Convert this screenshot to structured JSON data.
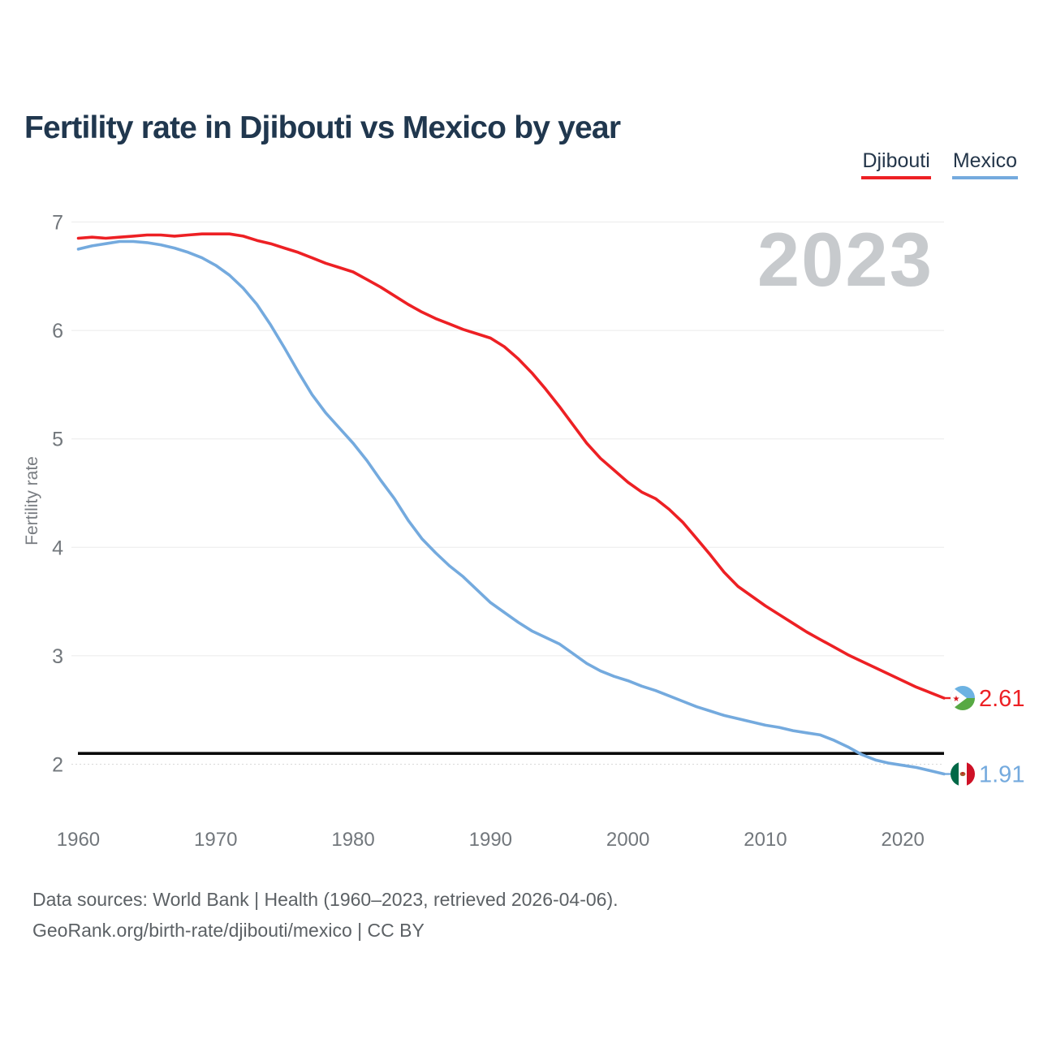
{
  "header": {
    "title": "Fertility rate in Djibouti vs Mexico by year"
  },
  "watermark": "2023",
  "footer": {
    "line1": "Data sources: World Bank | Health (1960–2023, retrieved 2026-04-06).",
    "line2": "GeoRank.org/birth-rate/djibouti/mexico | CC BY"
  },
  "chart_data": {
    "type": "line",
    "title": "Fertility rate in Djibouti vs Mexico by year",
    "xlabel": "",
    "ylabel": "Fertility rate",
    "xlim": [
      1959.5,
      2023
    ],
    "ylim": [
      2,
      7
    ],
    "yticks": [
      2,
      3,
      4,
      5,
      6,
      7
    ],
    "xticks": [
      1960,
      1970,
      1980,
      1990,
      2000,
      2010,
      2020
    ],
    "grid": true,
    "legend_position": "top-right",
    "baseline": {
      "value": 2.1,
      "color": "#0a0a0a"
    },
    "colors": {
      "tick_label": "#72777c",
      "grid": "#ebebeb",
      "watermark": "#c7cacd",
      "axis_label": "#797d82"
    },
    "years": [
      1960,
      1961,
      1962,
      1963,
      1964,
      1965,
      1966,
      1967,
      1968,
      1969,
      1970,
      1971,
      1972,
      1973,
      1974,
      1975,
      1976,
      1977,
      1978,
      1979,
      1980,
      1981,
      1982,
      1983,
      1984,
      1985,
      1986,
      1987,
      1988,
      1989,
      1990,
      1991,
      1992,
      1993,
      1994,
      1995,
      1996,
      1997,
      1998,
      1999,
      2000,
      2001,
      2002,
      2003,
      2004,
      2005,
      2006,
      2007,
      2008,
      2009,
      2010,
      2011,
      2012,
      2013,
      2014,
      2015,
      2016,
      2017,
      2018,
      2019,
      2020,
      2021,
      2022,
      2023
    ],
    "series": [
      {
        "name": "Djibouti",
        "color": "#ed2024",
        "end_label": "2.61",
        "flag": "djibouti",
        "values": [
          6.85,
          6.86,
          6.85,
          6.86,
          6.87,
          6.88,
          6.88,
          6.87,
          6.88,
          6.89,
          6.89,
          6.89,
          6.87,
          6.83,
          6.8,
          6.76,
          6.72,
          6.67,
          6.62,
          6.58,
          6.54,
          6.47,
          6.4,
          6.32,
          6.24,
          6.17,
          6.11,
          6.06,
          6.01,
          5.97,
          5.93,
          5.85,
          5.74,
          5.61,
          5.46,
          5.3,
          5.13,
          4.96,
          4.82,
          4.71,
          4.6,
          4.51,
          4.45,
          4.35,
          4.23,
          4.08,
          3.93,
          3.77,
          3.64,
          3.55,
          3.46,
          3.38,
          3.3,
          3.22,
          3.15,
          3.08,
          3.01,
          2.95,
          2.89,
          2.83,
          2.77,
          2.71,
          2.66,
          2.61
        ]
      },
      {
        "name": "Mexico",
        "color": "#74aade",
        "end_label": "1.91",
        "flag": "mexico",
        "values": [
          6.75,
          6.78,
          6.8,
          6.82,
          6.82,
          6.81,
          6.79,
          6.76,
          6.72,
          6.67,
          6.6,
          6.51,
          6.39,
          6.24,
          6.05,
          5.84,
          5.62,
          5.41,
          5.24,
          5.1,
          4.96,
          4.8,
          4.62,
          4.45,
          4.25,
          4.08,
          3.95,
          3.83,
          3.73,
          3.61,
          3.49,
          3.4,
          3.31,
          3.23,
          3.17,
          3.11,
          3.02,
          2.93,
          2.86,
          2.81,
          2.77,
          2.72,
          2.68,
          2.63,
          2.58,
          2.53,
          2.49,
          2.45,
          2.42,
          2.39,
          2.36,
          2.34,
          2.31,
          2.29,
          2.27,
          2.22,
          2.16,
          2.09,
          2.04,
          2.01,
          1.99,
          1.97,
          1.94,
          1.91
        ]
      }
    ],
    "flag_colors": {
      "djibouti": {
        "top": "#6cb2e2",
        "bottom": "#57a943",
        "triangle": "#ffffff",
        "star": "#d7141a"
      },
      "mexico": {
        "green": "#006847",
        "white": "#ffffff",
        "red": "#ce1126",
        "emblem": "#a65e2e"
      }
    }
  }
}
